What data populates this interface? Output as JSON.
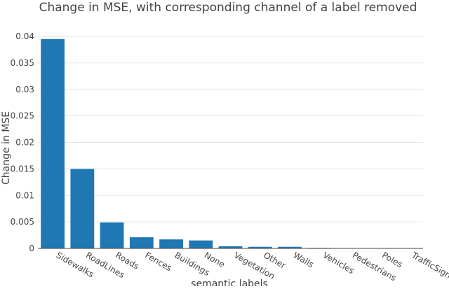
{
  "chart_data": {
    "type": "bar",
    "title": "Change in MSE, with corresponding channel of a label removed",
    "xlabel": "semantic labels",
    "ylabel": "Change in MSE",
    "categories": [
      "Sidewalks",
      "RoadLines",
      "Roads",
      "Fences",
      "Buildings",
      "None",
      "Vegetation",
      "Other",
      "Walls",
      "Vehicles",
      "Pedestrians",
      "Poles",
      "TrafficSigns"
    ],
    "values": [
      0.0395,
      0.015,
      0.0049,
      0.0021,
      0.0017,
      0.0015,
      0.0004,
      0.0003,
      0.0003,
      0.0001,
      5e-05,
      3e-05,
      2e-05
    ],
    "ylim": [
      0,
      0.04
    ],
    "yticks": [
      0,
      0.005,
      0.01,
      0.015,
      0.02,
      0.025,
      0.03,
      0.035,
      0.04
    ],
    "ytick_labels": [
      "0",
      "0.005",
      "0.01",
      "0.015",
      "0.02",
      "0.025",
      "0.03",
      "0.035",
      "0.04"
    ],
    "grid": true,
    "bar_color": "#1f77b4"
  }
}
